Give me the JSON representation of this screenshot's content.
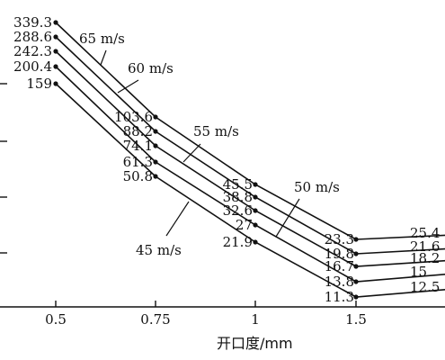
{
  "chart_data": {
    "type": "line",
    "title": "",
    "xlabel": "开口度/mm",
    "ylabel": "",
    "x": [
      "0.5",
      "0.75",
      "1",
      "1.5",
      ""
    ],
    "x_tick_labels": [
      "0.5",
      "0.75",
      "1",
      "1.5"
    ],
    "series": [
      {
        "name": "65 m/s",
        "values": [
          "339.3",
          "103.6",
          "45.5",
          "23.3",
          "25.4"
        ]
      },
      {
        "name": "60 m/s",
        "values": [
          "288.6",
          "88.2",
          "38.8",
          "19.8",
          "21.6"
        ]
      },
      {
        "name": "55 m/s",
        "values": [
          "242.3",
          "74.1",
          "32.6",
          "16.7",
          "18.2"
        ]
      },
      {
        "name": "50 m/s",
        "values": [
          "200.4",
          "61.3",
          "27",
          "13.8",
          "15"
        ]
      },
      {
        "name": "45 m/s",
        "values": [
          "159",
          "50.8",
          "21.9",
          "11.3",
          "12.5"
        ]
      }
    ],
    "grid": false,
    "legend": "none"
  }
}
